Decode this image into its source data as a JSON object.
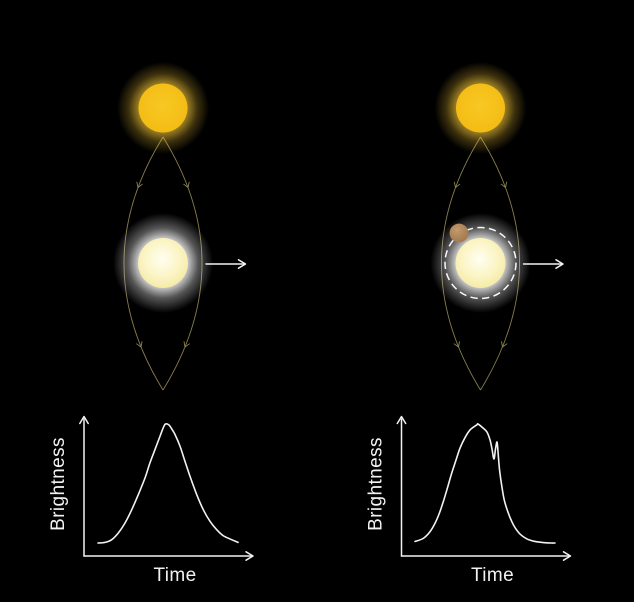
{
  "colors": {
    "background": "#000000",
    "source_star": "#F9C824",
    "source_star_edge": "#F3BC14",
    "source_glow": "#F9CA38",
    "lens_star_core": "#FFFEF2",
    "lens_star": "#FBF4C3",
    "lens_star_edge": "#F3E9A2",
    "lens_glow": "#FFFFFF",
    "light_path": "#8D8352",
    "einstein_ring": "#FFFFFF",
    "planet": "#C29A6D",
    "planet_edge": "#9E744A",
    "plot": "#F2F2F2"
  },
  "panels": [
    {
      "graph": {
        "ylabel": "Brightness",
        "xlabel": "Time",
        "curve": [
          [
            0,
            0
          ],
          [
            0.05,
            0.005
          ],
          [
            0.098,
            0.028
          ],
          [
            0.145,
            0.084
          ],
          [
            0.193,
            0.168
          ],
          [
            0.241,
            0.28
          ],
          [
            0.288,
            0.407
          ],
          [
            0.336,
            0.547
          ],
          [
            0.371,
            0.673
          ],
          [
            0.407,
            0.785
          ],
          [
            0.443,
            0.897
          ],
          [
            0.466,
            0.968
          ],
          [
            0.482,
            1
          ],
          [
            0.507,
            0.992
          ],
          [
            0.529,
            0.954
          ],
          [
            0.55,
            0.912
          ],
          [
            0.586,
            0.813
          ],
          [
            0.621,
            0.687
          ],
          [
            0.657,
            0.561
          ],
          [
            0.705,
            0.407
          ],
          [
            0.752,
            0.28
          ],
          [
            0.8,
            0.182
          ],
          [
            0.848,
            0.112
          ],
          [
            0.895,
            0.061
          ],
          [
            0.955,
            0.028
          ],
          [
            1,
            0.005
          ]
        ]
      }
    },
    {
      "graph": {
        "ylabel": "Brightness",
        "xlabel": "Time",
        "curve": [
          [
            0,
            0.013
          ],
          [
            0.059,
            0.039
          ],
          [
            0.107,
            0.095
          ],
          [
            0.143,
            0.166
          ],
          [
            0.174,
            0.25
          ],
          [
            0.202,
            0.347
          ],
          [
            0.231,
            0.46
          ],
          [
            0.262,
            0.586
          ],
          [
            0.293,
            0.697
          ],
          [
            0.321,
            0.796
          ],
          [
            0.357,
            0.885
          ],
          [
            0.393,
            0.95
          ],
          [
            0.441,
            0.992
          ],
          [
            0.45,
            1
          ],
          [
            0.488,
            0.964
          ],
          [
            0.514,
            0.933
          ],
          [
            0.536,
            0.866
          ],
          [
            0.55,
            0.79
          ],
          [
            0.564,
            0.706
          ],
          [
            0.575,
            0.79
          ],
          [
            0.586,
            0.849
          ],
          [
            0.593,
            0.765
          ],
          [
            0.604,
            0.613
          ],
          [
            0.621,
            0.471
          ],
          [
            0.643,
            0.336
          ],
          [
            0.693,
            0.176
          ],
          [
            0.743,
            0.084
          ],
          [
            0.8,
            0.034
          ],
          [
            0.857,
            0.013
          ],
          [
            0.914,
            0.004
          ],
          [
            0.971,
            0
          ],
          [
            1,
            0
          ]
        ]
      }
    }
  ]
}
